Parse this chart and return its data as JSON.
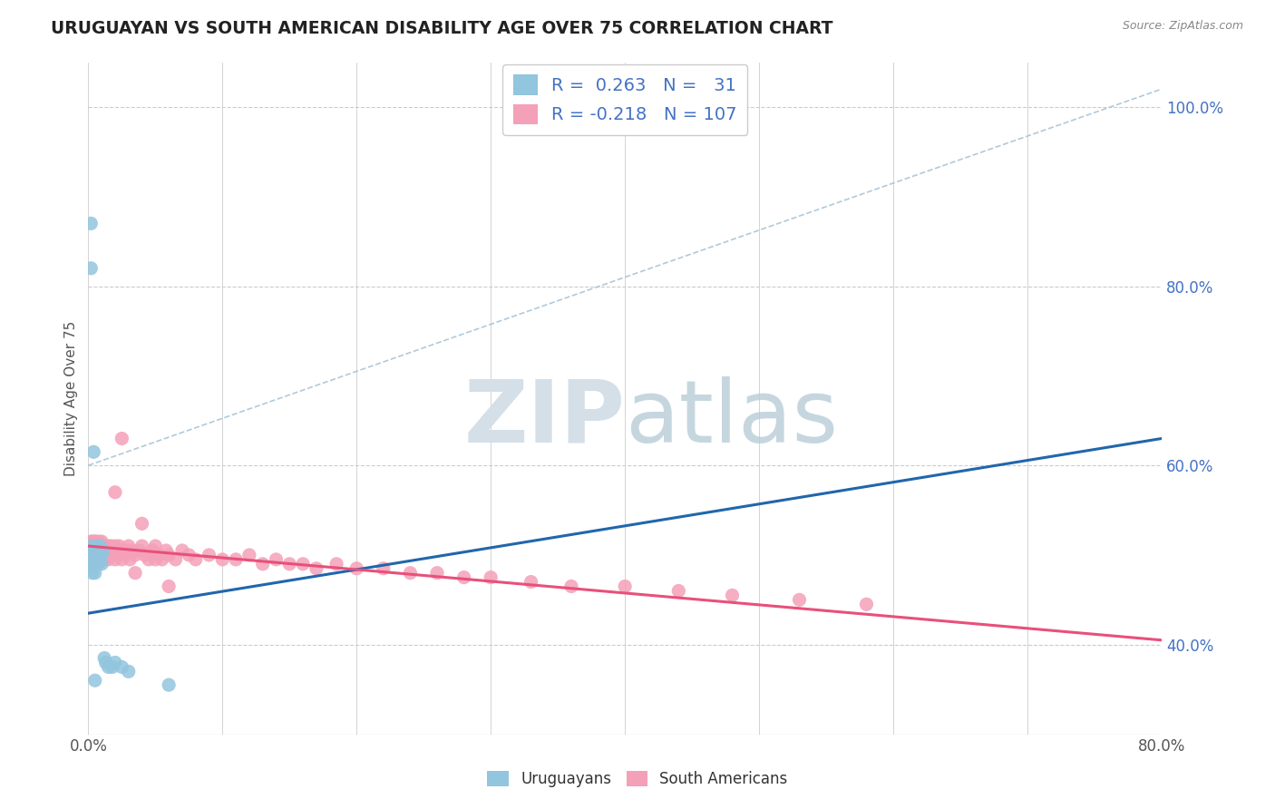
{
  "title": "URUGUAYAN VS SOUTH AMERICAN DISABILITY AGE OVER 75 CORRELATION CHART",
  "source": "Source: ZipAtlas.com",
  "ylabel": "Disability Age Over 75",
  "legend_uruguayan": "Uruguayans",
  "legend_south_american": "South Americans",
  "R_uru": 0.263,
  "N_uru": 31,
  "R_sa": -0.218,
  "N_sa": 107,
  "uruguayan_color": "#92c5de",
  "south_american_color": "#f4a0b8",
  "uruguayan_line_color": "#2166ac",
  "south_american_line_color": "#e8507a",
  "right_ytick_vals": [
    0.4,
    0.6,
    0.8,
    1.0
  ],
  "right_ytick_labels": [
    "40.0%",
    "60.0%",
    "80.0%",
    "100.0%"
  ],
  "xlim": [
    0.0,
    0.8
  ],
  "ylim": [
    0.3,
    1.05
  ],
  "background_color": "#ffffff",
  "grid_color": "#cccccc",
  "watermark_color": "#d4dfe8",
  "uru_x": [
    0.001,
    0.001,
    0.002,
    0.002,
    0.002,
    0.003,
    0.003,
    0.003,
    0.004,
    0.004,
    0.005,
    0.005,
    0.005,
    0.005,
    0.006,
    0.006,
    0.007,
    0.007,
    0.008,
    0.009,
    0.01,
    0.01,
    0.011,
    0.012,
    0.013,
    0.015,
    0.018,
    0.02,
    0.025,
    0.03,
    0.06
  ],
  "uru_y": [
    0.51,
    0.49,
    0.87,
    0.82,
    0.505,
    0.5,
    0.495,
    0.48,
    0.615,
    0.505,
    0.5,
    0.49,
    0.48,
    0.36,
    0.51,
    0.5,
    0.5,
    0.49,
    0.505,
    0.51,
    0.5,
    0.49,
    0.505,
    0.385,
    0.38,
    0.375,
    0.375,
    0.38,
    0.375,
    0.37,
    0.355
  ],
  "sa_x": [
    0.001,
    0.001,
    0.001,
    0.002,
    0.002,
    0.002,
    0.002,
    0.002,
    0.003,
    0.003,
    0.003,
    0.003,
    0.003,
    0.004,
    0.004,
    0.004,
    0.004,
    0.005,
    0.005,
    0.005,
    0.005,
    0.005,
    0.006,
    0.006,
    0.006,
    0.006,
    0.007,
    0.007,
    0.007,
    0.008,
    0.008,
    0.008,
    0.009,
    0.009,
    0.01,
    0.01,
    0.01,
    0.011,
    0.011,
    0.012,
    0.012,
    0.013,
    0.013,
    0.014,
    0.015,
    0.015,
    0.016,
    0.017,
    0.018,
    0.019,
    0.02,
    0.02,
    0.021,
    0.022,
    0.023,
    0.025,
    0.025,
    0.027,
    0.028,
    0.03,
    0.031,
    0.033,
    0.035,
    0.038,
    0.04,
    0.042,
    0.045,
    0.048,
    0.05,
    0.053,
    0.055,
    0.058,
    0.06,
    0.065,
    0.07,
    0.075,
    0.08,
    0.09,
    0.1,
    0.11,
    0.12,
    0.13,
    0.14,
    0.15,
    0.16,
    0.17,
    0.185,
    0.2,
    0.22,
    0.24,
    0.26,
    0.28,
    0.3,
    0.33,
    0.36,
    0.4,
    0.44,
    0.48,
    0.53,
    0.58,
    0.02,
    0.025,
    0.03,
    0.035,
    0.04,
    0.05,
    0.06
  ],
  "sa_y": [
    0.51,
    0.5,
    0.495,
    0.515,
    0.505,
    0.5,
    0.495,
    0.49,
    0.515,
    0.51,
    0.505,
    0.495,
    0.49,
    0.515,
    0.505,
    0.5,
    0.49,
    0.515,
    0.51,
    0.505,
    0.5,
    0.49,
    0.515,
    0.51,
    0.5,
    0.49,
    0.51,
    0.505,
    0.495,
    0.515,
    0.505,
    0.495,
    0.51,
    0.5,
    0.515,
    0.51,
    0.495,
    0.51,
    0.5,
    0.505,
    0.495,
    0.51,
    0.5,
    0.505,
    0.51,
    0.495,
    0.505,
    0.51,
    0.5,
    0.505,
    0.51,
    0.495,
    0.505,
    0.5,
    0.51,
    0.505,
    0.495,
    0.505,
    0.5,
    0.51,
    0.495,
    0.505,
    0.5,
    0.505,
    0.51,
    0.5,
    0.495,
    0.505,
    0.51,
    0.5,
    0.495,
    0.505,
    0.5,
    0.495,
    0.505,
    0.5,
    0.495,
    0.5,
    0.495,
    0.495,
    0.5,
    0.49,
    0.495,
    0.49,
    0.49,
    0.485,
    0.49,
    0.485,
    0.485,
    0.48,
    0.48,
    0.475,
    0.475,
    0.47,
    0.465,
    0.465,
    0.46,
    0.455,
    0.45,
    0.445,
    0.57,
    0.63,
    0.505,
    0.48,
    0.535,
    0.495,
    0.465
  ],
  "uru_line_x": [
    0.0,
    0.8
  ],
  "uru_line_y": [
    0.435,
    0.63
  ],
  "sa_line_x": [
    0.0,
    0.8
  ],
  "sa_line_y": [
    0.51,
    0.405
  ],
  "ref_line_x": [
    0.0,
    0.8
  ],
  "ref_line_y": [
    0.6,
    1.02
  ]
}
